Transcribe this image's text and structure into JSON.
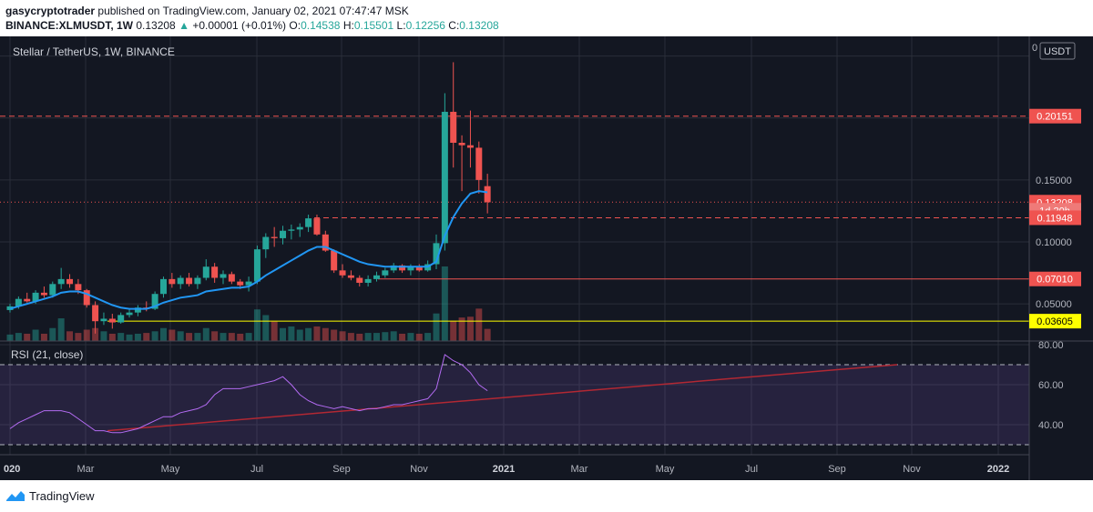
{
  "header": {
    "author": "gasycryptotrader",
    "published_text": "published on TradingView.com, January 02, 2021 07:47:47 MSK",
    "symbol": "BINANCE:XLMUSDT, 1W",
    "last_price": "0.13208",
    "change": "+0.00001 (+0.01%)",
    "o_label": "O:",
    "o_value": "0.14538",
    "h_label": "H:",
    "h_value": "0.15501",
    "l_label": "L:",
    "l_value": "0.12256",
    "c_label": "C:",
    "c_value": "0.13208"
  },
  "chart": {
    "legend": "Stellar / TetherUS, 1W, BINANCE",
    "currency_button": "USDT",
    "price_axis_ticks": [
      "0.15000",
      "0.10000",
      "0.05000"
    ],
    "price_axis_top_cut": "0",
    "price_labels": [
      {
        "text": "0.20151",
        "value": 0.20151,
        "style": "red",
        "line": "dashed-red"
      },
      {
        "text": "0.13208",
        "value": 0.13208,
        "style": "red",
        "line": "dotted-red"
      },
      {
        "text": "1d 20h",
        "value": 0.1255,
        "style": "countdown",
        "line": "none"
      },
      {
        "text": "0.11948",
        "value": 0.11948,
        "style": "red",
        "line": "dashed-red"
      },
      {
        "text": "0.07010",
        "value": 0.0701,
        "style": "red",
        "line": "solid-red"
      },
      {
        "text": "0.03605",
        "value": 0.03605,
        "style": "yellow",
        "line": "solid-yellow"
      }
    ],
    "time_axis": [
      "020",
      "Mar",
      "May",
      "Jul",
      "Sep",
      "Nov",
      "2021",
      "Mar",
      "May",
      "Jul",
      "Sep",
      "Nov",
      "2022"
    ],
    "colors": {
      "up": "#26a69a",
      "down": "#ef5350",
      "ema": "#2196f3",
      "rsi": "#b36bf2",
      "bg": "#131722",
      "grid": "#2a2e39",
      "yellow": "#ffff00"
    },
    "rsi_panel": {
      "title": "RSI (21, close)",
      "ticks": [
        "80.00",
        "60.00",
        "40.00"
      ],
      "upper_band": 70,
      "lower_band": 30
    }
  },
  "chart_data": {
    "type": "candlestick",
    "title": "Stellar / TetherUS, 1W, BINANCE",
    "interval": "1W",
    "candles": [
      {
        "o": 0.045,
        "h": 0.05,
        "l": 0.043,
        "c": 0.048
      },
      {
        "o": 0.048,
        "h": 0.056,
        "l": 0.046,
        "c": 0.054
      },
      {
        "o": 0.054,
        "h": 0.059,
        "l": 0.051,
        "c": 0.052
      },
      {
        "o": 0.052,
        "h": 0.061,
        "l": 0.05,
        "c": 0.059
      },
      {
        "o": 0.059,
        "h": 0.064,
        "l": 0.055,
        "c": 0.057
      },
      {
        "o": 0.057,
        "h": 0.068,
        "l": 0.055,
        "c": 0.066
      },
      {
        "o": 0.066,
        "h": 0.079,
        "l": 0.062,
        "c": 0.07
      },
      {
        "o": 0.07,
        "h": 0.074,
        "l": 0.063,
        "c": 0.066
      },
      {
        "o": 0.066,
        "h": 0.07,
        "l": 0.058,
        "c": 0.061
      },
      {
        "o": 0.061,
        "h": 0.062,
        "l": 0.047,
        "c": 0.049
      },
      {
        "o": 0.049,
        "h": 0.052,
        "l": 0.026,
        "c": 0.036
      },
      {
        "o": 0.036,
        "h": 0.043,
        "l": 0.033,
        "c": 0.038
      },
      {
        "o": 0.038,
        "h": 0.042,
        "l": 0.03,
        "c": 0.035
      },
      {
        "o": 0.035,
        "h": 0.043,
        "l": 0.034,
        "c": 0.041
      },
      {
        "o": 0.041,
        "h": 0.046,
        "l": 0.039,
        "c": 0.043
      },
      {
        "o": 0.043,
        "h": 0.049,
        "l": 0.04,
        "c": 0.047
      },
      {
        "o": 0.047,
        "h": 0.052,
        "l": 0.044,
        "c": 0.046
      },
      {
        "o": 0.046,
        "h": 0.06,
        "l": 0.045,
        "c": 0.058
      },
      {
        "o": 0.058,
        "h": 0.072,
        "l": 0.055,
        "c": 0.07
      },
      {
        "o": 0.07,
        "h": 0.075,
        "l": 0.063,
        "c": 0.066
      },
      {
        "o": 0.066,
        "h": 0.073,
        "l": 0.062,
        "c": 0.071
      },
      {
        "o": 0.071,
        "h": 0.075,
        "l": 0.064,
        "c": 0.066
      },
      {
        "o": 0.066,
        "h": 0.073,
        "l": 0.062,
        "c": 0.071
      },
      {
        "o": 0.071,
        "h": 0.086,
        "l": 0.069,
        "c": 0.08
      },
      {
        "o": 0.08,
        "h": 0.083,
        "l": 0.067,
        "c": 0.071
      },
      {
        "o": 0.071,
        "h": 0.077,
        "l": 0.066,
        "c": 0.074
      },
      {
        "o": 0.074,
        "h": 0.076,
        "l": 0.066,
        "c": 0.068
      },
      {
        "o": 0.068,
        "h": 0.07,
        "l": 0.062,
        "c": 0.065
      },
      {
        "o": 0.065,
        "h": 0.072,
        "l": 0.06,
        "c": 0.068
      },
      {
        "o": 0.068,
        "h": 0.097,
        "l": 0.066,
        "c": 0.094
      },
      {
        "o": 0.094,
        "h": 0.107,
        "l": 0.087,
        "c": 0.104
      },
      {
        "o": 0.104,
        "h": 0.112,
        "l": 0.096,
        "c": 0.103
      },
      {
        "o": 0.103,
        "h": 0.113,
        "l": 0.098,
        "c": 0.109
      },
      {
        "o": 0.109,
        "h": 0.114,
        "l": 0.102,
        "c": 0.11
      },
      {
        "o": 0.11,
        "h": 0.115,
        "l": 0.104,
        "c": 0.112
      },
      {
        "o": 0.112,
        "h": 0.122,
        "l": 0.108,
        "c": 0.119
      },
      {
        "o": 0.119,
        "h": 0.122,
        "l": 0.105,
        "c": 0.106
      },
      {
        "o": 0.106,
        "h": 0.109,
        "l": 0.092,
        "c": 0.093
      },
      {
        "o": 0.093,
        "h": 0.094,
        "l": 0.075,
        "c": 0.077
      },
      {
        "o": 0.077,
        "h": 0.082,
        "l": 0.071,
        "c": 0.073
      },
      {
        "o": 0.073,
        "h": 0.077,
        "l": 0.069,
        "c": 0.071
      },
      {
        "o": 0.071,
        "h": 0.073,
        "l": 0.064,
        "c": 0.067
      },
      {
        "o": 0.067,
        "h": 0.073,
        "l": 0.064,
        "c": 0.07
      },
      {
        "o": 0.07,
        "h": 0.076,
        "l": 0.068,
        "c": 0.073
      },
      {
        "o": 0.073,
        "h": 0.079,
        "l": 0.071,
        "c": 0.077
      },
      {
        "o": 0.077,
        "h": 0.083,
        "l": 0.075,
        "c": 0.081
      },
      {
        "o": 0.081,
        "h": 0.082,
        "l": 0.075,
        "c": 0.077
      },
      {
        "o": 0.077,
        "h": 0.082,
        "l": 0.073,
        "c": 0.08
      },
      {
        "o": 0.08,
        "h": 0.082,
        "l": 0.076,
        "c": 0.077
      },
      {
        "o": 0.077,
        "h": 0.085,
        "l": 0.076,
        "c": 0.082
      },
      {
        "o": 0.082,
        "h": 0.106,
        "l": 0.078,
        "c": 0.099
      },
      {
        "o": 0.099,
        "h": 0.22,
        "l": 0.093,
        "c": 0.205
      },
      {
        "o": 0.205,
        "h": 0.245,
        "l": 0.16,
        "c": 0.18
      },
      {
        "o": 0.18,
        "h": 0.186,
        "l": 0.141,
        "c": 0.178
      },
      {
        "o": 0.178,
        "h": 0.206,
        "l": 0.16,
        "c": 0.176
      },
      {
        "o": 0.176,
        "h": 0.181,
        "l": 0.139,
        "c": 0.15
      },
      {
        "o": 0.145,
        "h": 0.155,
        "l": 0.123,
        "c": 0.132
      }
    ],
    "ema_values": [
      0.046,
      0.048,
      0.05,
      0.052,
      0.054,
      0.056,
      0.059,
      0.06,
      0.06,
      0.058,
      0.055,
      0.052,
      0.049,
      0.047,
      0.046,
      0.046,
      0.046,
      0.048,
      0.051,
      0.053,
      0.055,
      0.056,
      0.057,
      0.06,
      0.061,
      0.062,
      0.063,
      0.063,
      0.064,
      0.068,
      0.073,
      0.077,
      0.081,
      0.085,
      0.089,
      0.093,
      0.096,
      0.096,
      0.093,
      0.09,
      0.087,
      0.084,
      0.082,
      0.081,
      0.08,
      0.08,
      0.08,
      0.08,
      0.08,
      0.08,
      0.084,
      0.105,
      0.12,
      0.131,
      0.139,
      0.141,
      0.14
    ],
    "volumes": [
      0.8,
      1.0,
      0.9,
      1.4,
      0.9,
      1.6,
      2.8,
      1.2,
      1.0,
      1.4,
      1.6,
      1.2,
      0.9,
      1.0,
      0.8,
      0.9,
      1.0,
      1.2,
      1.6,
      1.4,
      1.2,
      1.0,
      1.0,
      1.6,
      1.2,
      1.0,
      1.0,
      0.9,
      1.0,
      3.9,
      3.2,
      2.4,
      1.6,
      1.8,
      1.4,
      1.6,
      1.8,
      1.6,
      1.4,
      1.2,
      1.0,
      0.9,
      1.0,
      1.0,
      1.1,
      1.2,
      0.9,
      1.0,
      0.9,
      1.0,
      3.4,
      9.2,
      2.5,
      2.9,
      3.0,
      4.0,
      1.5
    ],
    "rsi_values": [
      38,
      41,
      43,
      45,
      47,
      47,
      47,
      46,
      43,
      40,
      37,
      37,
      36,
      36,
      37,
      38,
      40,
      42,
      44,
      44,
      46,
      47,
      48,
      50,
      55,
      58,
      58,
      58,
      59,
      60,
      61,
      62,
      64,
      60,
      55,
      52,
      50,
      49,
      48,
      49,
      48,
      47,
      48,
      48,
      49,
      50,
      50,
      51,
      52,
      53,
      58,
      75,
      72,
      70,
      66,
      60,
      57
    ],
    "y_axis": {
      "min": 0.02,
      "max": 0.26,
      "ticks": [
        0.15,
        0.1,
        0.05
      ]
    },
    "rsi_axis": {
      "ticks": [
        80,
        60,
        40
      ],
      "bands": [
        30,
        70
      ]
    }
  }
}
